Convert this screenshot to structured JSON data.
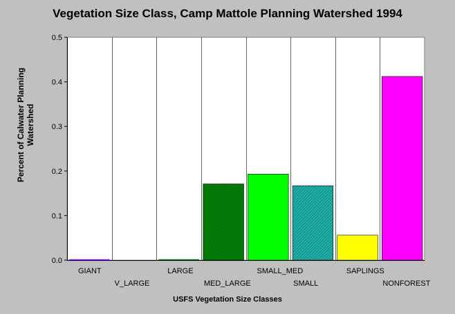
{
  "chart_data": {
    "type": "bar",
    "title": "Vegetation Size Class, Camp Mattole Planning Watershed 1994",
    "xlabel": "USFS Vegetation Size Classes",
    "ylabel": "Percent of Calwater Planning Watershed",
    "ylim": [
      0,
      0.5
    ],
    "yticks": [
      "0.0",
      "0.1",
      "0.2",
      "0.3",
      "0.4",
      "0.5"
    ],
    "categories": [
      "GIANT",
      "V_LARGE",
      "LARGE",
      "MED_LARGE",
      "SMALL_MED",
      "SMALL",
      "SAPLINGS",
      "NONFOREST"
    ],
    "values": [
      0.002,
      0.0,
      0.002,
      0.171,
      0.193,
      0.167,
      0.056,
      0.412
    ],
    "colors": [
      "#8000ff",
      "#c0c0c0",
      "#006400",
      "#008000",
      "#00ff00",
      "#20b2aa",
      "#ffff00",
      "#ff00ff"
    ],
    "patterns": [
      "solid",
      "solid",
      "solid",
      "hatch",
      "solid",
      "hatch",
      "solid",
      "solid"
    ],
    "grid": "vertical category dividers",
    "background": "#ffffff"
  }
}
